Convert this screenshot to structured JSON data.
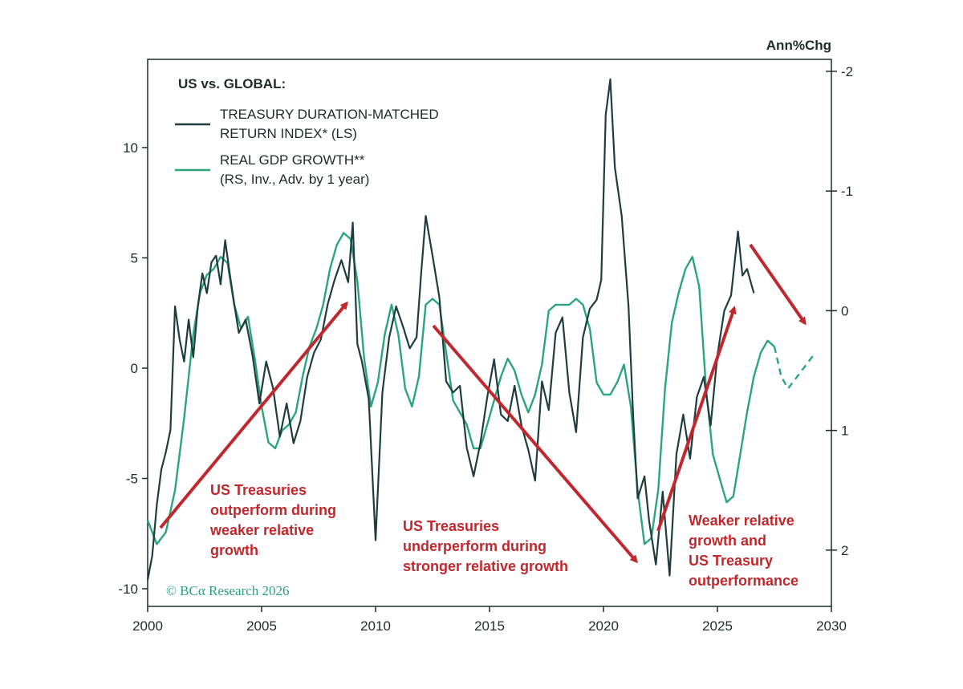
{
  "chart_data": {
    "type": "line",
    "legend": {
      "heading": "US vs. GLOBAL:",
      "entries": [
        {
          "lines": [
            "TREASURY DURATION-MATCHED",
            "RETURN INDEX* (LS)"
          ],
          "color": "#1e3d3c"
        },
        {
          "lines": [
            "REAL GDP GROWTH**",
            "(RS, Inv., Adv. by 1 year)"
          ],
          "color": "#2aa57e"
        }
      ]
    },
    "right_axis_label": "Ann%Chg",
    "x_range": [
      2000,
      2030
    ],
    "x_ticks": [
      "2000",
      "2005",
      "2010",
      "2015",
      "2020",
      "2025",
      "2030"
    ],
    "left_axis": {
      "range": [
        -10.8,
        14
      ],
      "ticks": [
        "-10",
        "-5",
        "0",
        "5",
        "10"
      ]
    },
    "right_axis": {
      "inverted": true,
      "range_top": -2.1,
      "range_bottom": 2.47,
      "ticks": [
        "-2",
        "-1",
        "0",
        "1",
        "2"
      ]
    },
    "series": [
      {
        "name": "TREASURY DURATION-MATCHED RETURN INDEX* (LS)",
        "axis": "left",
        "color": "#1e3d3c",
        "x": [
          2000.0,
          2000.2,
          2000.4,
          2000.6,
          2000.8,
          2001.0,
          2001.2,
          2001.4,
          2001.6,
          2001.8,
          2002.0,
          2002.2,
          2002.4,
          2002.6,
          2002.8,
          2003.0,
          2003.2,
          2003.4,
          2003.6,
          2003.8,
          2004.0,
          2004.3,
          2004.6,
          2004.9,
          2005.2,
          2005.5,
          2005.8,
          2006.1,
          2006.4,
          2006.7,
          2007.0,
          2007.3,
          2007.6,
          2007.9,
          2008.2,
          2008.5,
          2008.8,
          2009.0,
          2009.2,
          2009.4,
          2009.7,
          2010.0,
          2010.3,
          2010.6,
          2010.9,
          2011.2,
          2011.5,
          2011.8,
          2012.0,
          2012.2,
          2012.5,
          2012.8,
          2013.1,
          2013.4,
          2013.7,
          2014.0,
          2014.3,
          2014.6,
          2014.9,
          2015.2,
          2015.5,
          2015.8,
          2016.1,
          2016.4,
          2016.7,
          2017.0,
          2017.3,
          2017.6,
          2017.9,
          2018.2,
          2018.5,
          2018.8,
          2019.1,
          2019.4,
          2019.7,
          2019.9,
          2020.1,
          2020.3,
          2020.5,
          2020.8,
          2021.1,
          2021.3,
          2021.5,
          2021.8,
          2022.0,
          2022.3,
          2022.6,
          2022.9,
          2023.2,
          2023.5,
          2023.8,
          2024.1,
          2024.4,
          2024.7,
          2025.0,
          2025.3,
          2025.6,
          2025.9,
          2026.1,
          2026.3,
          2026.6
        ],
        "y": [
          -9.6,
          -8.5,
          -6.2,
          -4.6,
          -3.8,
          -2.8,
          2.8,
          1.3,
          0.3,
          2.2,
          0.5,
          2.8,
          4.3,
          3.4,
          4.8,
          5.1,
          3.8,
          5.8,
          4.3,
          2.9,
          1.6,
          2.2,
          0.6,
          -1.6,
          0.3,
          -0.9,
          -3.1,
          -1.6,
          -3.4,
          -2.4,
          -0.4,
          0.7,
          1.3,
          2.9,
          4.0,
          4.9,
          3.9,
          6.6,
          1.1,
          0.3,
          -1.4,
          -7.8,
          -1.1,
          1.4,
          2.8,
          1.9,
          0.9,
          1.4,
          4.3,
          6.9,
          5.1,
          3.2,
          -0.6,
          -1.1,
          -0.8,
          -3.6,
          -4.9,
          -3.4,
          -1.3,
          0.4,
          -2.1,
          -2.4,
          -0.8,
          -2.6,
          -3.7,
          -5.1,
          -0.6,
          -1.9,
          1.6,
          2.3,
          -1.1,
          -2.9,
          1.4,
          2.7,
          3.1,
          4.0,
          11.5,
          13.1,
          9.1,
          6.9,
          2.8,
          -2.1,
          -5.9,
          -4.9,
          -6.9,
          -8.9,
          -5.6,
          -9.4,
          -3.9,
          -2.1,
          -4.1,
          -1.3,
          -0.4,
          -2.6,
          0.6,
          2.6,
          3.3,
          6.2,
          4.2,
          4.5,
          3.4
        ]
      },
      {
        "name": "REAL GDP GROWTH** (RS, Inv., Adv. by 1 year)",
        "axis": "right",
        "color": "#2aa57e",
        "x": [
          2000.0,
          2000.4,
          2000.8,
          2001.2,
          2001.6,
          2002.0,
          2002.3,
          2002.6,
          2002.9,
          2003.2,
          2003.5,
          2003.8,
          2004.1,
          2004.4,
          2004.7,
          2005.0,
          2005.3,
          2005.6,
          2005.9,
          2006.2,
          2006.5,
          2006.8,
          2007.1,
          2007.4,
          2007.7,
          2008.0,
          2008.3,
          2008.6,
          2008.9,
          2009.2,
          2009.5,
          2009.8,
          2010.1,
          2010.4,
          2010.7,
          2011.0,
          2011.3,
          2011.6,
          2011.9,
          2012.2,
          2012.5,
          2012.8,
          2013.1,
          2013.4,
          2013.7,
          2014.0,
          2014.3,
          2014.6,
          2014.9,
          2015.2,
          2015.5,
          2015.8,
          2016.1,
          2016.4,
          2016.7,
          2017.0,
          2017.3,
          2017.6,
          2017.9,
          2018.2,
          2018.5,
          2018.8,
          2019.1,
          2019.4,
          2019.7,
          2020.0,
          2020.3,
          2020.6,
          2020.9,
          2021.2,
          2021.5,
          2021.8,
          2022.1,
          2022.4,
          2022.7,
          2023.0,
          2023.3,
          2023.6,
          2023.9,
          2024.2,
          2024.5,
          2024.8,
          2025.1,
          2025.4,
          2025.7,
          2026.0,
          2026.3,
          2026.6,
          2026.9,
          2027.2,
          2027.5
        ],
        "y": [
          1.75,
          1.95,
          1.85,
          1.5,
          0.9,
          0.2,
          -0.15,
          -0.3,
          -0.35,
          -0.45,
          -0.4,
          -0.05,
          0.15,
          0.05,
          0.4,
          0.8,
          1.1,
          1.15,
          1.0,
          0.95,
          0.85,
          0.55,
          0.3,
          0.15,
          -0.05,
          -0.35,
          -0.55,
          -0.65,
          -0.6,
          -0.25,
          0.4,
          0.8,
          0.6,
          0.2,
          -0.05,
          0.2,
          0.65,
          0.8,
          0.55,
          -0.05,
          -0.1,
          -0.05,
          0.35,
          0.75,
          0.85,
          0.95,
          1.15,
          1.15,
          0.95,
          0.75,
          0.55,
          0.4,
          0.5,
          0.7,
          0.85,
          0.7,
          0.45,
          0.0,
          -0.05,
          -0.05,
          -0.05,
          -0.1,
          -0.05,
          0.15,
          0.6,
          0.7,
          0.7,
          0.6,
          0.45,
          0.8,
          1.5,
          1.95,
          1.9,
          1.5,
          0.65,
          0.1,
          -0.15,
          -0.35,
          -0.45,
          -0.2,
          0.65,
          1.2,
          1.4,
          1.6,
          1.55,
          1.2,
          0.85,
          0.55,
          0.35,
          0.25,
          0.3
        ],
        "forecast": {
          "x": [
            2027.5,
            2027.8,
            2028.1,
            2028.5,
            2028.9,
            2029.3
          ],
          "y": [
            0.3,
            0.55,
            0.65,
            0.55,
            0.45,
            0.35
          ]
        }
      }
    ],
    "annotations": [
      {
        "lines": [
          "US Treasuries",
          "outperform during",
          "weaker relative",
          "growth"
        ]
      },
      {
        "lines": [
          "US Treasuries",
          "underperform during",
          "stronger relative growth"
        ]
      },
      {
        "lines": [
          "Weaker relative",
          "growth and",
          "US Treasury",
          "outperformance"
        ]
      }
    ],
    "credit": "© BCα Research 2026",
    "colors": {
      "axis": "#1f2b2a",
      "arrow": "#c0282d"
    }
  }
}
